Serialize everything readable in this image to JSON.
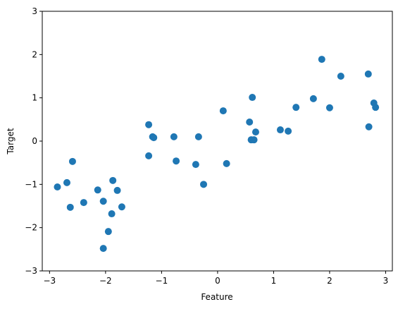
{
  "chart_data": {
    "type": "scatter",
    "xlabel": "Feature",
    "ylabel": "Target",
    "color": "#1f77b4",
    "x": [
      -2.86,
      -2.69,
      -2.59,
      -2.63,
      -2.39,
      -2.14,
      -2.04,
      -2.04,
      -1.95,
      -1.87,
      -1.89,
      -1.79,
      -1.71,
      -1.23,
      -1.23,
      -1.16,
      -1.14,
      -0.78,
      -0.74,
      -0.39,
      -0.34,
      -0.25,
      0.1,
      0.16,
      0.57,
      0.62,
      0.6,
      0.65,
      0.68,
      1.12,
      1.26,
      1.4,
      1.71,
      1.86,
      2.0,
      2.2,
      2.69,
      2.7,
      2.79,
      2.82
    ],
    "values": [
      -1.06,
      -0.96,
      -0.47,
      -1.53,
      -1.42,
      -1.13,
      -1.39,
      -2.48,
      -2.09,
      -0.91,
      -1.68,
      -1.14,
      -1.52,
      0.38,
      -0.34,
      0.1,
      0.08,
      0.1,
      -0.46,
      -0.54,
      0.1,
      -1.0,
      0.7,
      -0.52,
      0.44,
      1.01,
      0.03,
      0.03,
      0.21,
      0.26,
      0.23,
      0.78,
      0.98,
      1.89,
      0.77,
      1.5,
      1.55,
      0.33,
      0.88,
      0.78
    ],
    "xlim": [
      -3.13,
      3.12
    ],
    "ylim": [
      -3,
      3
    ],
    "xticks": [
      {
        "value": -3,
        "label": "−3"
      },
      {
        "value": -2,
        "label": "−2"
      },
      {
        "value": -1,
        "label": "−1"
      },
      0,
      1,
      2,
      3
    ],
    "yticks": [
      {
        "value": -3,
        "label": "−3"
      },
      {
        "value": -2,
        "label": "−2"
      },
      {
        "value": -1,
        "label": "−1"
      },
      0,
      1,
      2,
      3
    ]
  }
}
